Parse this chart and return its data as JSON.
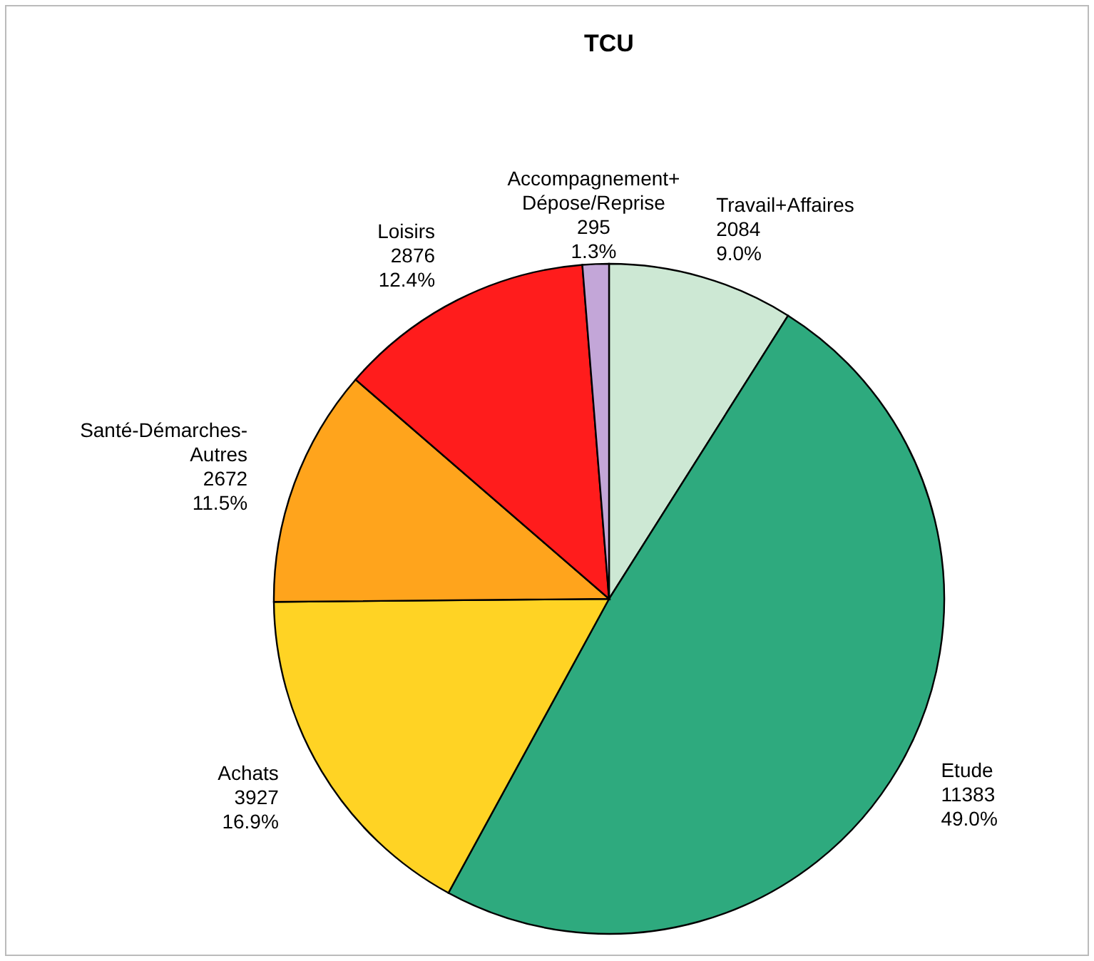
{
  "chart_data": {
    "type": "pie",
    "title": "TCU",
    "categories": [
      "Travail+Affaires",
      "Etude",
      "Achats",
      "Santé-Démarches-\nAutres",
      "Loisirs",
      "Accompagnement+\nDépose/Reprise"
    ],
    "values": [
      2084,
      11383,
      3927,
      2672,
      2876,
      295
    ],
    "colors": [
      "#cde8d4",
      "#2eaa7e",
      "#ffd324",
      "#ffa41c",
      "#ff1c1c",
      "#c3a6d8"
    ],
    "value_labels": [
      "2084\n9.0%",
      "11383\n49.0%",
      "3927\n16.9%",
      "2672\n11.5%",
      "2876\n12.4%",
      "295\n1.3%"
    ],
    "legend": false
  }
}
